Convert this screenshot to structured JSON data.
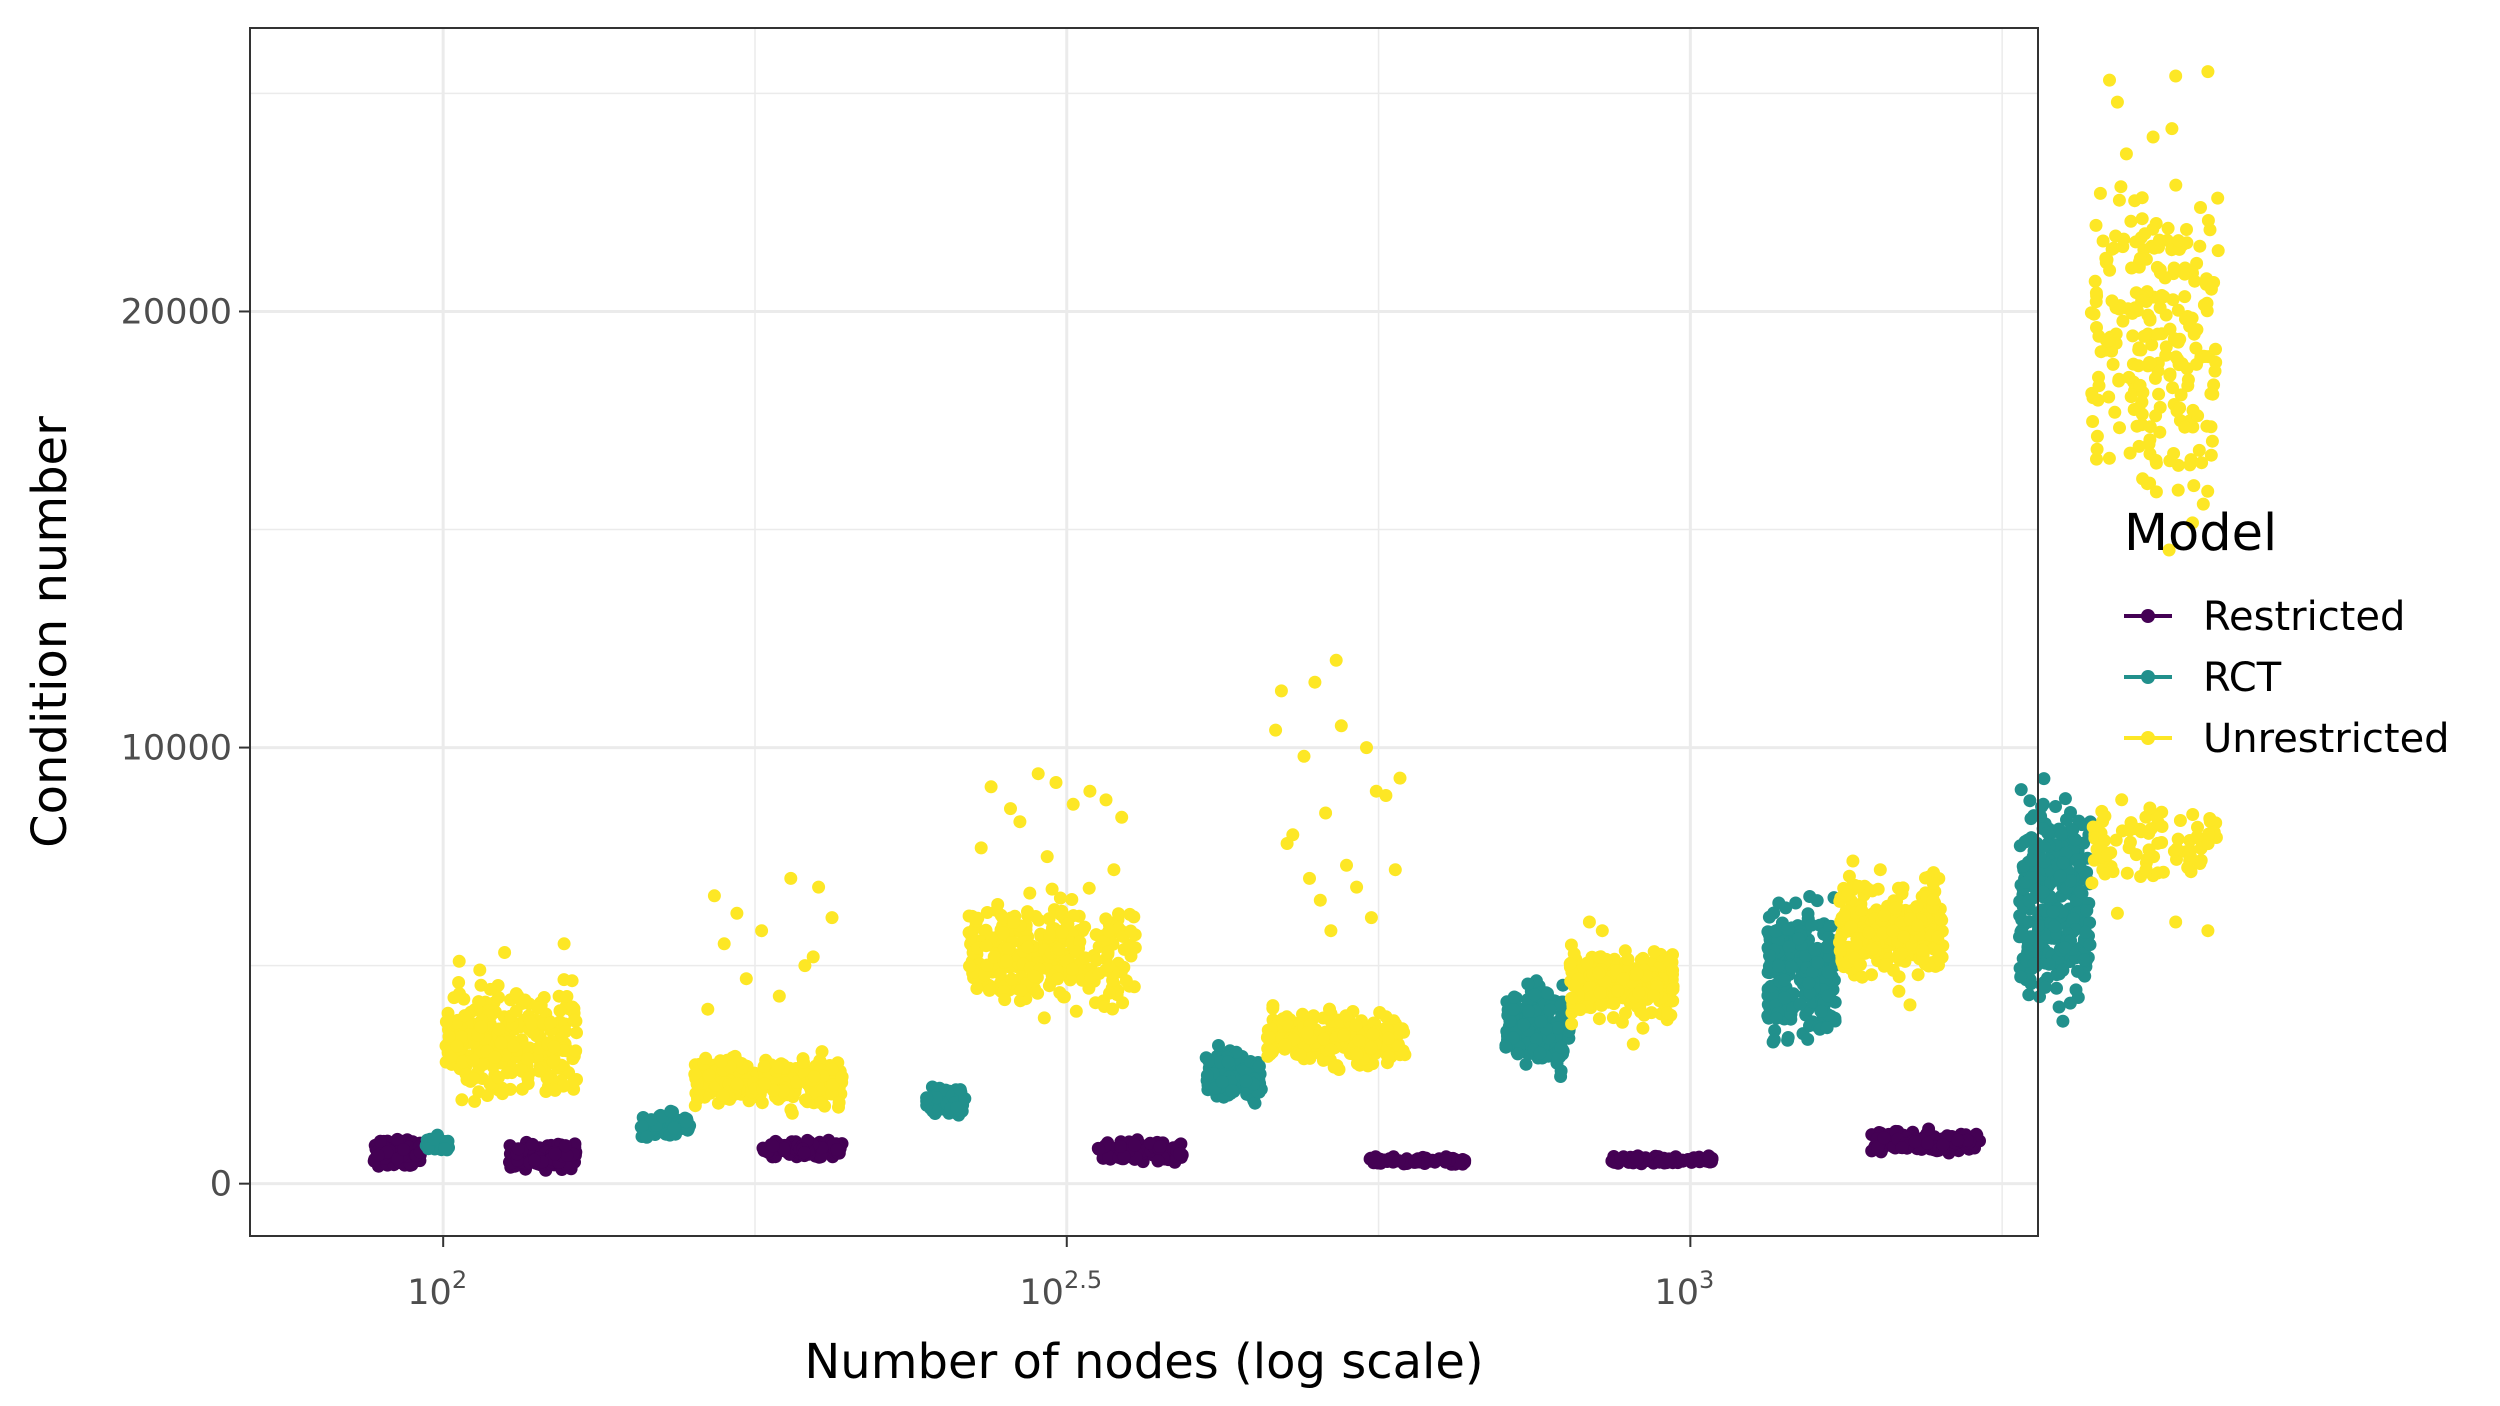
{
  "chart_data": {
    "type": "scatter",
    "xlabel": "Number of nodes (log scale)",
    "ylabel": "Condition number",
    "x_scale": "log10",
    "xlim": [
      70,
      1900
    ],
    "ylim": [
      -1200,
      26500
    ],
    "x_ticks": [
      {
        "value": 100,
        "base": "10",
        "exp": "2"
      },
      {
        "value": 316.23,
        "base": "10",
        "exp": "2.5"
      },
      {
        "value": 1000,
        "base": "10",
        "exp": "3"
      }
    ],
    "y_ticks": [
      0,
      10000,
      20000
    ],
    "grid": true,
    "legend": {
      "title": "Model",
      "position": "right",
      "entries": [
        "Restricted",
        "RCT",
        "Unrestricted"
      ]
    },
    "series": [
      {
        "name": "Restricted",
        "color": "#440154",
        "clusters": [
          {
            "x_min": 88,
            "x_max": 96,
            "y_min": 300,
            "y_max": 1100,
            "n": 160
          },
          {
            "x_min": 113,
            "x_max": 128,
            "y_min": 250,
            "y_max": 1050,
            "n": 190
          },
          {
            "x_min": 180,
            "x_max": 209,
            "y_min": 550,
            "y_max": 1050,
            "n": 110
          },
          {
            "x_min": 335,
            "x_max": 392,
            "y_min": 400,
            "y_max": 1050,
            "n": 130
          },
          {
            "x_min": 551,
            "x_max": 662,
            "y_min": 380,
            "y_max": 650,
            "n": 80
          },
          {
            "x_min": 864,
            "x_max": 1046,
            "y_min": 400,
            "y_max": 680,
            "n": 90
          },
          {
            "x_min": 1397,
            "x_max": 1707,
            "y_min": 600,
            "y_max": 1300,
            "n": 130
          }
        ]
      },
      {
        "name": "RCT",
        "color": "#21908C",
        "clusters": [
          {
            "x_min": 96.8,
            "x_max": 101,
            "y_min": 650,
            "y_max": 1150,
            "n": 50
          },
          {
            "x_min": 144,
            "x_max": 158,
            "y_min": 950,
            "y_max": 1750,
            "n": 50
          },
          {
            "x_min": 244,
            "x_max": 262,
            "y_min": 1400,
            "y_max": 2350,
            "n": 60
          },
          {
            "x_min": 409,
            "x_max": 453,
            "y_min": 1600,
            "y_max": 3400,
            "n": 120
          },
          {
            "x_min": 711,
            "x_max": 801,
            "y_min": 2300,
            "y_max": 4900,
            "n": 200
          },
          {
            "x_min": 1153,
            "x_max": 1308,
            "y_min": 2700,
            "y_max": 7000,
            "n": 250
          },
          {
            "x_min": 1836,
            "x_max": 2093,
            "y_min": 3300,
            "y_max": 9700,
            "n": 300
          }
        ]
      },
      {
        "name": "Unrestricted",
        "color": "#FDE725",
        "clusters": [
          {
            "x_min": 100.5,
            "x_max": 128,
            "y_min": 1500,
            "y_max": 5000,
            "n": 300,
            "outliers": [
              [
                103,
                5100
              ],
              [
                112,
                5300
              ],
              [
                125,
                5500
              ],
              [
                107,
                4900
              ]
            ]
          },
          {
            "x_min": 159,
            "x_max": 209,
            "y_min": 1500,
            "y_max": 3200,
            "n": 240,
            "outliers": [
              [
                165,
                6600
              ],
              [
                172,
                6200
              ],
              [
                190,
                7000
              ],
              [
                200,
                6800
              ],
              [
                180,
                5800
              ],
              [
                195,
                5000
              ],
              [
                168,
                5500
              ],
              [
                175,
                4700
              ],
              [
                205,
                6100
              ],
              [
                186,
                4300
              ],
              [
                198,
                5200
              ],
              [
                163,
                4000
              ]
            ]
          },
          {
            "x_min": 264,
            "x_max": 359,
            "y_min": 3500,
            "y_max": 7000,
            "n": 300,
            "outliers": [
              [
                275,
                9100
              ],
              [
                300,
                9400
              ],
              [
                320,
                8700
              ],
              [
                290,
                8300
              ],
              [
                340,
                8800
              ],
              [
                310,
                9200
              ],
              [
                285,
                8600
              ],
              [
                330,
                9000
              ],
              [
                350,
                8400
              ],
              [
                270,
                7700
              ],
              [
                305,
                7500
              ],
              [
                345,
                7200
              ]
            ]
          },
          {
            "x_min": 457,
            "x_max": 591,
            "y_min": 2500,
            "y_max": 4200,
            "n": 260,
            "outliers": [
              [
                470,
                11300
              ],
              [
                500,
                11500
              ],
              [
                520,
                12000
              ],
              [
                490,
                9800
              ],
              [
                550,
                10000
              ],
              [
                480,
                8000
              ],
              [
                510,
                8500
              ],
              [
                560,
                9000
              ],
              [
                530,
                7300
              ],
              [
                540,
                6800
              ],
              [
                475,
                7800
              ],
              [
                570,
                8900
              ],
              [
                505,
                6500
              ],
              [
                580,
                7200
              ],
              [
                525,
                10500
              ],
              [
                495,
                7000
              ],
              [
                555,
                6100
              ],
              [
                465,
                10400
              ],
              [
                515,
                5800
              ],
              [
                585,
                9300
              ]
            ]
          },
          {
            "x_min": 801,
            "x_max": 970,
            "y_min": 3500,
            "y_max": 5600,
            "n": 220,
            "outliers": [
              [
                830,
                6000
              ],
              [
                900,
                3200
              ],
              [
                850,
                5800
              ]
            ]
          },
          {
            "x_min": 1317,
            "x_max": 1594,
            "y_min": 4300,
            "y_max": 7300,
            "n": 280,
            "outliers": [
              [
                1350,
                7400
              ],
              [
                1500,
                4100
              ],
              [
                1420,
                7200
              ]
            ]
          },
          {
            "x_min": 2093,
            "x_max": 2650,
            "y_min": 6500,
            "y_max": 9200,
            "n": 80,
            "outliers": [
              [
                2600,
                5800
              ],
              [
                2200,
                6200
              ],
              [
                2450,
                6000
              ],
              [
                2150,
                7100
              ]
            ]
          },
          {
            "x_min": 2093,
            "x_max": 2650,
            "y_min": 13500,
            "y_max": 25500,
            "n": 240,
            "outliers": [
              [
                2450,
                25400
              ],
              [
                2600,
                25500
              ],
              [
                2200,
                24800
              ],
              [
                2350,
                24000
              ]
            ]
          }
        ]
      }
    ]
  }
}
